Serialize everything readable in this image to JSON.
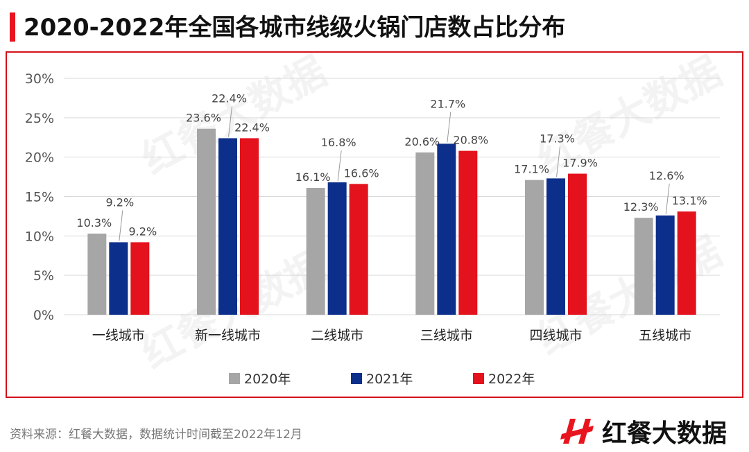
{
  "header": {
    "title": "2020-2022年全国各城市线级火锅门店数占比分布"
  },
  "chart_data": {
    "type": "bar",
    "categories": [
      "一线城市",
      "新一线城市",
      "二线城市",
      "三线城市",
      "四线城市",
      "五线城市"
    ],
    "series": [
      {
        "name": "2020年",
        "color": "#a6a6a6",
        "values": [
          10.3,
          23.6,
          16.1,
          20.6,
          17.1,
          12.3
        ]
      },
      {
        "name": "2021年",
        "color": "#0d2f8c",
        "values": [
          9.2,
          22.4,
          16.8,
          21.7,
          17.3,
          12.6
        ]
      },
      {
        "name": "2022年",
        "color": "#e3121c",
        "values": [
          9.2,
          22.4,
          16.6,
          20.8,
          17.9,
          13.1
        ]
      }
    ],
    "value_suffix": "%",
    "ylim": [
      0,
      30
    ],
    "yticks": [
      "0%",
      "5%",
      "10%",
      "15%",
      "20%",
      "25%",
      "30%"
    ],
    "grid": true,
    "legend_position": "bottom"
  },
  "footer": {
    "source": "资料来源：红餐大数据，数据统计时间截至2022年12月",
    "brand": "红餐大数据"
  },
  "watermark": {
    "text": "红餐大数据"
  },
  "colors": {
    "accent": "#e8141e"
  }
}
